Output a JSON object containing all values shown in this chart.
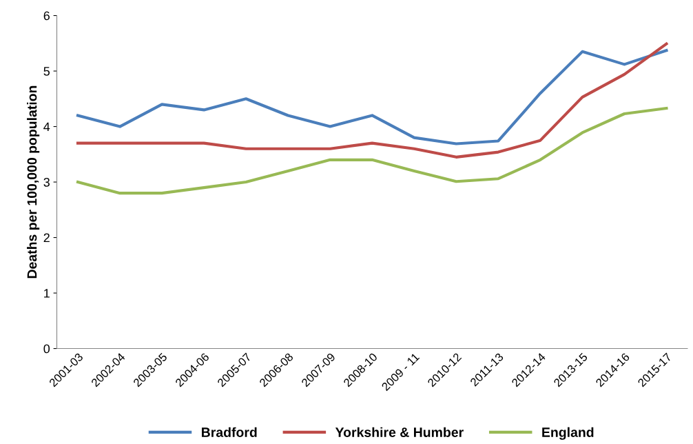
{
  "chart_data": {
    "type": "line",
    "ylabel": "Deaths per 100,000 population",
    "categories": [
      "2001-03",
      "2002-04",
      "2003-05",
      "2004-06",
      "2005-07",
      "2006-08",
      "2007-09",
      "2008-10",
      "2009 - 11",
      "2010-12",
      "2011-13",
      "2012-14",
      "2013-15",
      "2014-16",
      "2015-17"
    ],
    "series": [
      {
        "name": "Bradford",
        "color": "#4a7ebb",
        "values": [
          4.2,
          4.0,
          4.4,
          4.3,
          4.5,
          4.2,
          4.0,
          4.2,
          3.8,
          3.69,
          3.74,
          4.6,
          5.35,
          5.12,
          5.37
        ]
      },
      {
        "name": "Yorkshire & Humber",
        "color": "#be4b48",
        "values": [
          3.7,
          3.7,
          3.7,
          3.7,
          3.6,
          3.6,
          3.6,
          3.7,
          3.6,
          3.45,
          3.54,
          3.75,
          4.53,
          4.94,
          5.49
        ]
      },
      {
        "name": "England",
        "color": "#98b954",
        "values": [
          3.0,
          2.8,
          2.8,
          2.9,
          3.0,
          3.2,
          3.4,
          3.4,
          3.2,
          3.01,
          3.06,
          3.4,
          3.89,
          4.23,
          4.33
        ]
      }
    ],
    "ylim": [
      0,
      6
    ],
    "yticks": [
      0,
      1,
      2,
      3,
      4,
      5,
      6
    ],
    "grid": false,
    "legend": "bottom",
    "marker": "none",
    "line_style": "solid"
  }
}
